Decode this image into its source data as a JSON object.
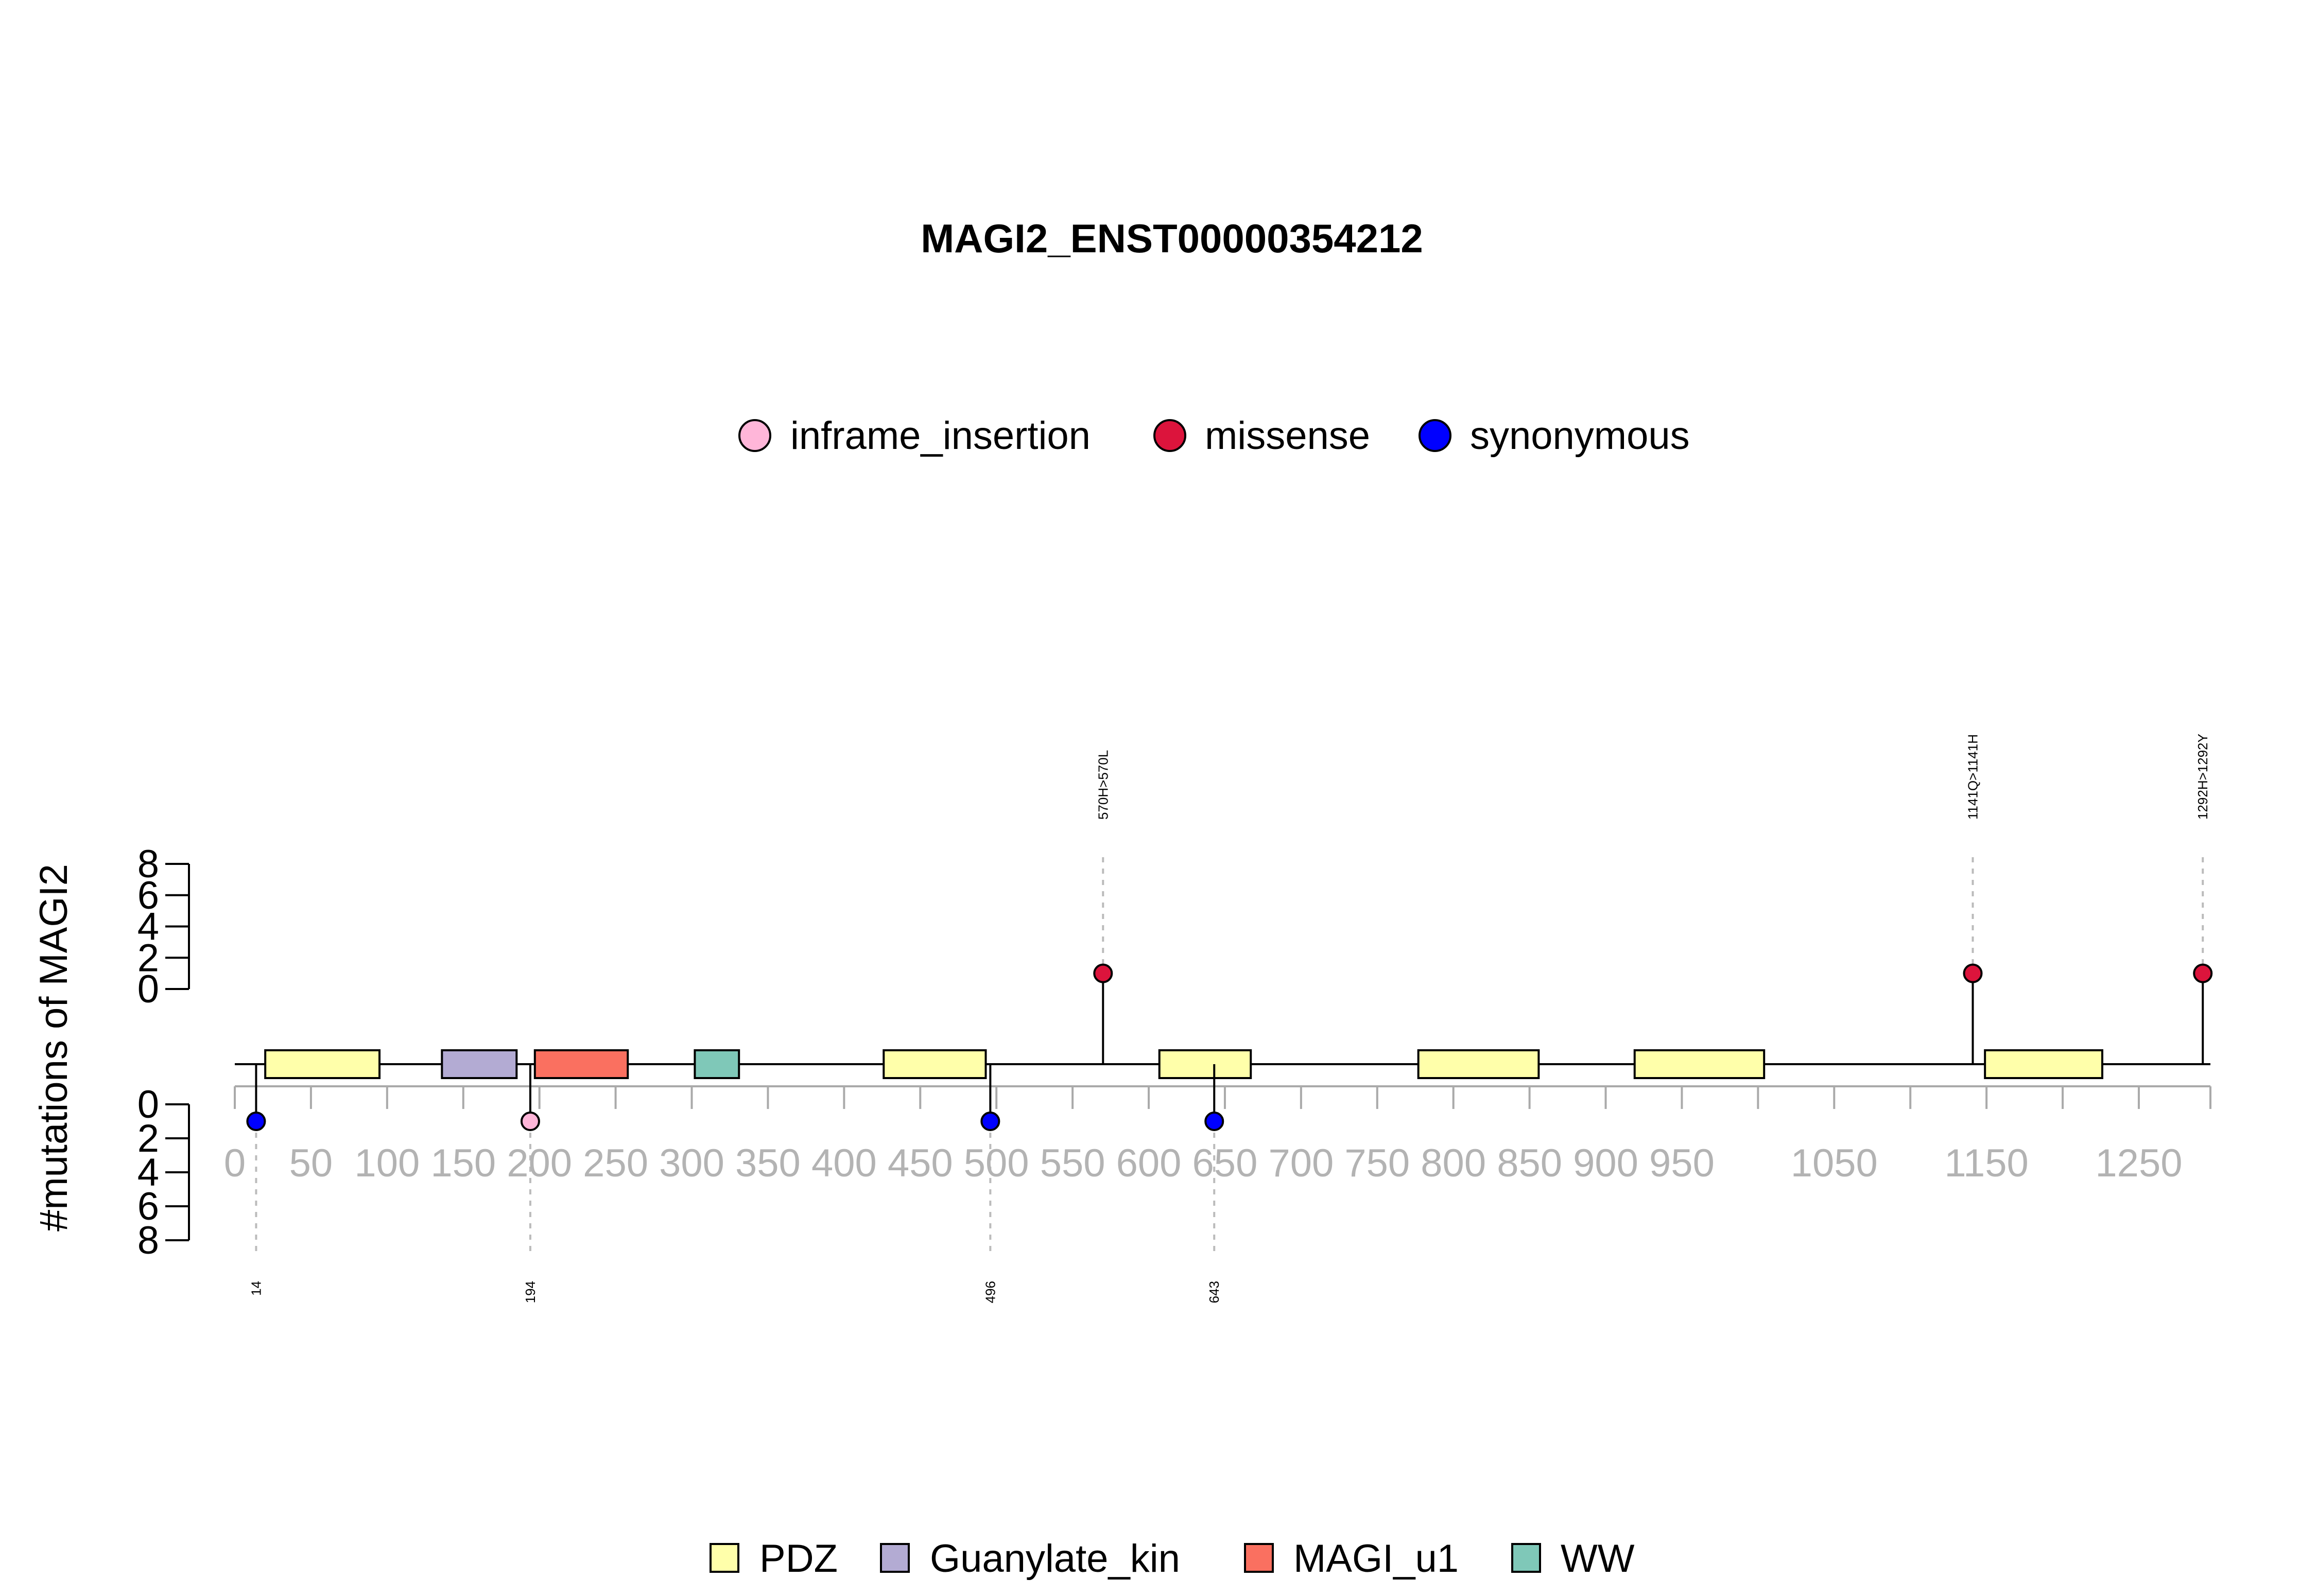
{
  "chart_data": {
    "type": "lollipop",
    "title": "MAGI2_ENST00000354212",
    "ylabel": "#mutations of MAGI2",
    "protein_length": 1297,
    "xlim": [
      0,
      1297
    ],
    "x_ticks": [
      0,
      50,
      100,
      150,
      200,
      250,
      300,
      350,
      400,
      450,
      500,
      550,
      600,
      650,
      700,
      750,
      800,
      850,
      900,
      950,
      1000,
      1050,
      1100,
      1150,
      1200,
      1250,
      1297
    ],
    "x_tick_labels": [
      "0",
      "50",
      "100",
      "150",
      "200",
      "250",
      "300",
      "350",
      "400",
      "450",
      "500",
      "550",
      "600",
      "650",
      "700",
      "750",
      "800",
      "850",
      "900",
      "950",
      "1050",
      "1150",
      "1250"
    ],
    "x_labeled_ticks": [
      0,
      50,
      100,
      150,
      200,
      250,
      300,
      350,
      400,
      450,
      500,
      550,
      600,
      650,
      700,
      750,
      800,
      850,
      900,
      950,
      1050,
      1150,
      1250
    ],
    "y_ticks_upper": [
      "8",
      "6",
      "4",
      "2",
      "0"
    ],
    "y_ticks_lower": [
      "0",
      "2",
      "4",
      "6",
      "8"
    ],
    "ylim": [
      0,
      8
    ],
    "legend_variants": [
      {
        "label": "inframe_insertion",
        "color": "#FFB6D9"
      },
      {
        "label": "missense",
        "color": "#DC143C"
      },
      {
        "label": "synonymous",
        "color": "#0000FF"
      }
    ],
    "legend_domains": [
      {
        "label": "PDZ",
        "color": "#FFFFAA"
      },
      {
        "label": "Guanylate_kin",
        "color": "#B3ABD3"
      },
      {
        "label": "MAGI_u1",
        "color": "#FA7060"
      },
      {
        "label": "WW",
        "color": "#7FC8B8"
      }
    ],
    "domains": [
      {
        "name": "PDZ",
        "start": 20,
        "end": 95
      },
      {
        "name": "Guanylate_kin",
        "start": 136,
        "end": 185
      },
      {
        "name": "MAGI_u1",
        "start": 197,
        "end": 258
      },
      {
        "name": "WW",
        "start": 302,
        "end": 331
      },
      {
        "name": "PDZ",
        "start": 426,
        "end": 493
      },
      {
        "name": "PDZ",
        "start": 607,
        "end": 667
      },
      {
        "name": "PDZ",
        "start": 777,
        "end": 856
      },
      {
        "name": "PDZ",
        "start": 919,
        "end": 1004
      },
      {
        "name": "PDZ",
        "start": 1149,
        "end": 1226
      }
    ],
    "mutations_top": [
      {
        "position": 570,
        "count": 1,
        "type": "missense",
        "label": "570H>570L"
      },
      {
        "position": 1141,
        "count": 1,
        "type": "missense",
        "label": "1141Q>1141H"
      },
      {
        "position": 1292,
        "count": 1,
        "type": "missense",
        "label": "1292H>1292Y"
      }
    ],
    "mutations_bottom": [
      {
        "position": 14,
        "count": 1,
        "type": "synonymous",
        "label": "14"
      },
      {
        "position": 194,
        "count": 1,
        "type": "inframe_insertion",
        "label": "194"
      },
      {
        "position": 496,
        "count": 1,
        "type": "synonymous",
        "label": "496"
      },
      {
        "position": 643,
        "count": 1,
        "type": "synonymous",
        "label": "643"
      }
    ]
  }
}
